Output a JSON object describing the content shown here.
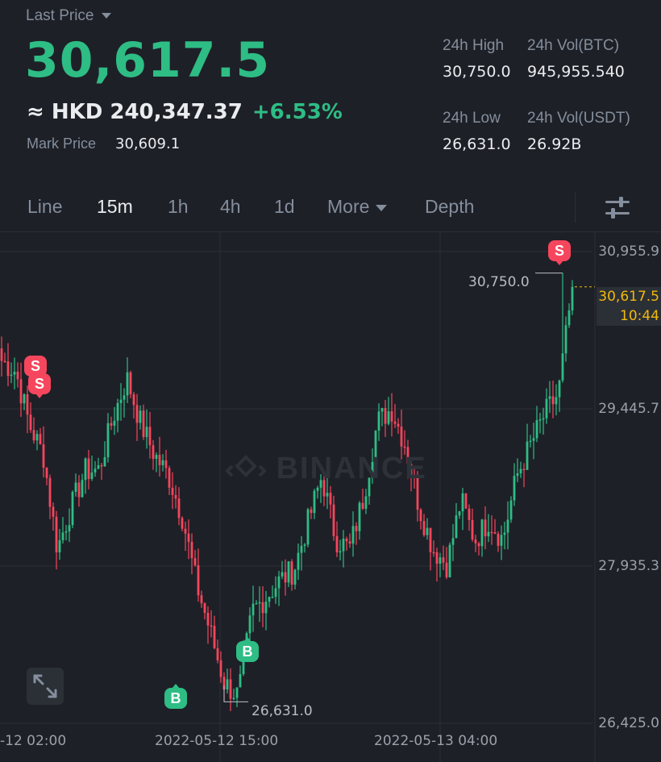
{
  "header": {
    "last_price_label": "Last Price",
    "last_price": "30,617.5",
    "hkd_price": "≈ HKD 240,347.37",
    "change_pct": "+6.53%",
    "mark_price_label": "Mark Price",
    "mark_price": "30,609.1"
  },
  "stats": {
    "high_label": "24h High",
    "high_value": "30,750.0",
    "vol_btc_label": "24h Vol(BTC)",
    "vol_btc_value": "945,955.540",
    "low_label": "24h Low",
    "low_value": "26,631.0",
    "vol_usdt_label": "24h Vol(USDT)",
    "vol_usdt_value": "26.92B"
  },
  "tabs": {
    "line": "Line",
    "m15": "15m",
    "h1": "1h",
    "h4": "4h",
    "d1": "1d",
    "more": "More",
    "depth": "Depth",
    "active": "15m"
  },
  "chart": {
    "watermark": "BINANCE",
    "y_labels": [
      "30,955.9",
      "29,445.7",
      "27,935.3",
      "26,425.0"
    ],
    "x_labels": [
      "-12 02:00",
      "2022-05-12 15:00",
      "2022-05-13 04:00"
    ],
    "high_annotation": "30,750.0",
    "low_annotation": "26,631.0",
    "current_price_tag": "30,617.5",
    "countdown": "10:44",
    "sell_label": "S",
    "buy_label": "B",
    "colors": {
      "up": "#2ebd85",
      "down": "#f6465d",
      "bg": "#1e2027",
      "grid": "#2b2f36",
      "accent": "#f0b90b"
    }
  },
  "chart_data": {
    "type": "candlestick",
    "interval": "15m",
    "y_range": [
      26425.0,
      30955.9
    ],
    "y_ticks": [
      30955.9,
      29445.7,
      27935.3,
      26425.0
    ],
    "x_ticks": [
      "-12 02:00",
      "2022-05-12 15:00",
      "2022-05-13 04:00"
    ],
    "high": 30750.0,
    "low": 26631.0,
    "last": 30617.5,
    "close_path": [
      29908,
      29810,
      29290,
      29000,
      28100,
      28500,
      28850,
      28860,
      29360,
      29740,
      29300,
      29000,
      28800,
      28400,
      27760,
      27300,
      26810,
      26690,
      27500,
      27640,
      27800,
      27900,
      28350,
      28800,
      28200,
      28100,
      28600,
      29320,
      29450,
      29100,
      28500,
      28100,
      27950,
      28570,
      28180,
      28380,
      28190,
      28800,
      29100,
      29390,
      29590,
      30617
    ]
  }
}
